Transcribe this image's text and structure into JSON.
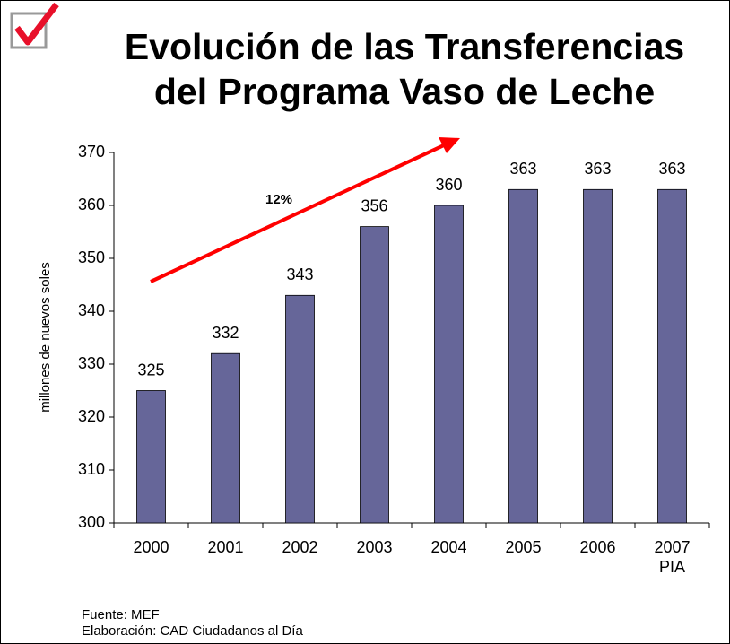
{
  "chart_data": {
    "type": "bar",
    "title": "Evolución de las Transferencias\ndel Programa Vaso de Leche",
    "y_label": "millones de nuevos soles",
    "annotation": "12%",
    "categories": [
      "2000",
      "2001",
      "2002",
      "2003",
      "2004",
      "2005",
      "2006",
      "2007\nPIA"
    ],
    "values": [
      325,
      332,
      343,
      356,
      360,
      363,
      363,
      363
    ],
    "color": "#666699",
    "ylim": [
      300,
      370
    ],
    "yticks": [
      300,
      310,
      320,
      330,
      340,
      350,
      360,
      370
    ],
    "source": "Fuente: MEF",
    "credit": "Elaboración: CAD Ciudadanos al Día"
  }
}
